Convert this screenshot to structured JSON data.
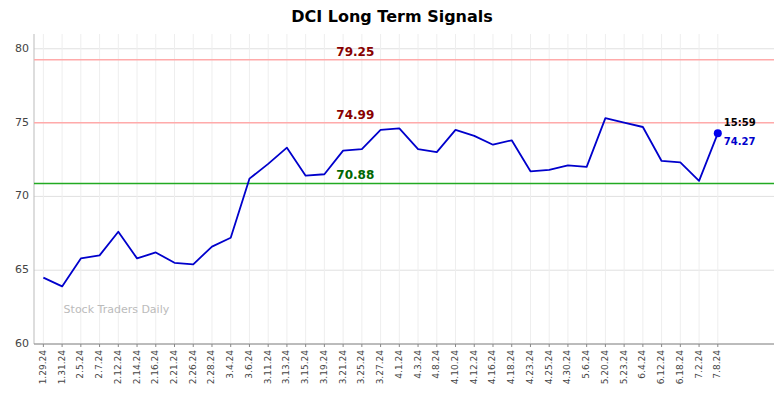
{
  "chart_data": {
    "type": "line",
    "title": "DCI Long Term Signals",
    "watermark": "Stock Traders Daily",
    "categories": [
      "1.29.24",
      "1.31.24",
      "2.5.24",
      "2.7.24",
      "2.12.24",
      "2.14.24",
      "2.16.24",
      "2.21.24",
      "2.26.24",
      "2.28.24",
      "3.4.24",
      "3.6.24",
      "3.11.24",
      "3.13.24",
      "3.15.24",
      "3.19.24",
      "3.21.24",
      "3.25.24",
      "3.27.24",
      "4.1.24",
      "4.3.24",
      "4.8.24",
      "4.10.24",
      "4.12.24",
      "4.16.24",
      "4.18.24",
      "4.23.24",
      "4.25.24",
      "4.30.24",
      "5.6.24",
      "5.20.24",
      "5.23.24",
      "6.4.24",
      "6.12.24",
      "6.18.24",
      "7.2.24",
      "7.8.24"
    ],
    "values": [
      64.5,
      63.9,
      65.8,
      66.0,
      67.6,
      65.8,
      66.2,
      65.5,
      65.4,
      66.6,
      67.2,
      71.2,
      72.2,
      73.3,
      71.4,
      71.5,
      73.1,
      73.2,
      74.5,
      74.6,
      73.2,
      73.0,
      74.5,
      74.1,
      73.5,
      73.8,
      71.7,
      71.8,
      72.1,
      72.0,
      75.3,
      75.0,
      74.7,
      72.4,
      72.3,
      71.05,
      74.27
    ],
    "color": "#0000cc",
    "ylim": [
      60,
      81
    ],
    "yticks": [
      60,
      65,
      70,
      75,
      80
    ],
    "grid": true,
    "hlines": [
      {
        "value": 79.25,
        "color": "#ffaaaa",
        "label_color": "#880000"
      },
      {
        "value": 74.99,
        "color": "#ffaaaa",
        "label_color": "#880000"
      },
      {
        "value": 70.88,
        "color": "#22aa22",
        "label_color": "#006600"
      }
    ],
    "last_point": {
      "label": "15:59",
      "value": 74.27,
      "color": "#0000ee",
      "value_color": "#0000cc"
    }
  }
}
